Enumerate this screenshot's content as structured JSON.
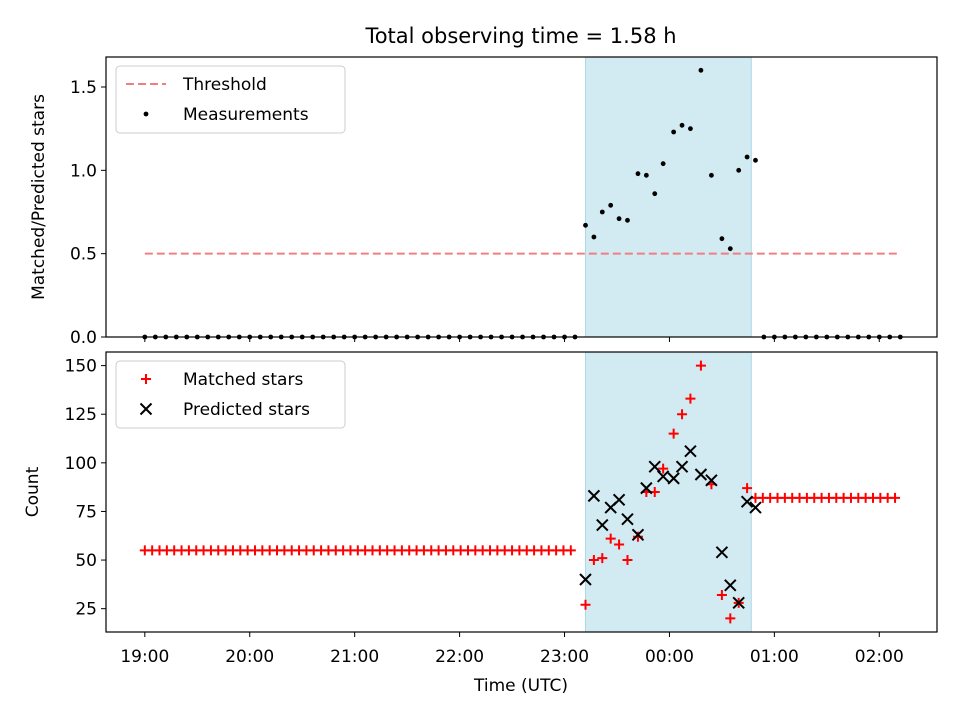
{
  "chart_data": {
    "title": "Total observing time = 1.58 h",
    "xlabel": "Time (UTC)",
    "x_tick_labels": [
      "19:00",
      "20:00",
      "21:00",
      "22:00",
      "23:00",
      "00:00",
      "01:00",
      "02:00"
    ],
    "x_tick_hours": [
      0,
      1,
      2,
      3,
      4,
      5,
      6,
      7
    ],
    "x_axis_start": "19:00",
    "xlim_hours": [
      -0.37,
      7.55
    ],
    "shaded_span_hours": [
      4.2,
      5.78
    ],
    "colors": {
      "threshold": "#f08080",
      "measurements": "#000000",
      "matched": "#ff0000",
      "predicted": "#000000",
      "span": "#add8e6"
    },
    "panels": [
      {
        "type": "scatter",
        "ylabel": "Matched/Predicted stars",
        "ylim": [
          0,
          1.68
        ],
        "y_ticks": [
          0.0,
          0.5,
          1.0,
          1.5
        ],
        "y_tick_labels": [
          "0.0",
          "0.5",
          "1.0",
          "1.5"
        ],
        "legend_position": "top-left",
        "threshold": {
          "name": "Threshold",
          "value": 0.5,
          "x_range_hours": [
            0,
            7.2
          ]
        },
        "measurements": {
          "name": "Measurements",
          "zero_before": {
            "start": 0,
            "end": 4.1,
            "step": 0.1
          },
          "zero_after": {
            "start": 5.9,
            "end": 7.2,
            "step": 0.1
          },
          "points": [
            [
              4.2,
              0.67
            ],
            [
              4.28,
              0.6
            ],
            [
              4.36,
              0.75
            ],
            [
              4.44,
              0.79
            ],
            [
              4.52,
              0.71
            ],
            [
              4.6,
              0.7
            ],
            [
              4.7,
              0.98
            ],
            [
              4.78,
              0.97
            ],
            [
              4.86,
              0.86
            ],
            [
              4.94,
              1.04
            ],
            [
              5.04,
              1.23
            ],
            [
              5.12,
              1.27
            ],
            [
              5.2,
              1.25
            ],
            [
              5.3,
              1.6
            ],
            [
              5.4,
              0.97
            ],
            [
              5.5,
              0.59
            ],
            [
              5.58,
              0.53
            ],
            [
              5.66,
              1.0
            ],
            [
              5.74,
              1.08
            ],
            [
              5.82,
              1.06
            ]
          ]
        }
      },
      {
        "type": "scatter",
        "ylabel": "Count",
        "ylim": [
          13,
          157
        ],
        "y_ticks": [
          25,
          50,
          75,
          100,
          125,
          150
        ],
        "y_tick_labels": [
          "25",
          "50",
          "75",
          "100",
          "125",
          "150"
        ],
        "legend_position": "top-left",
        "matched": {
          "name": "Matched stars",
          "flat_before": {
            "start": 0,
            "end": 4.1,
            "step": 0.07,
            "value": 55
          },
          "flat_after": {
            "start": 5.82,
            "end": 7.2,
            "step": 0.07,
            "value": 82
          },
          "points": [
            [
              4.2,
              27
            ],
            [
              4.28,
              50
            ],
            [
              4.36,
              51
            ],
            [
              4.44,
              61
            ],
            [
              4.52,
              58
            ],
            [
              4.6,
              50
            ],
            [
              4.7,
              62
            ],
            [
              4.78,
              85
            ],
            [
              4.86,
              85
            ],
            [
              4.94,
              97
            ],
            [
              5.04,
              115
            ],
            [
              5.12,
              125
            ],
            [
              5.2,
              133
            ],
            [
              5.3,
              150
            ],
            [
              5.4,
              89
            ],
            [
              5.5,
              32
            ],
            [
              5.58,
              20
            ],
            [
              5.66,
              28
            ],
            [
              5.74,
              87
            ]
          ]
        },
        "predicted": {
          "name": "Predicted stars",
          "points": [
            [
              4.2,
              40
            ],
            [
              4.28,
              83
            ],
            [
              4.36,
              68
            ],
            [
              4.44,
              77
            ],
            [
              4.52,
              81
            ],
            [
              4.6,
              71
            ],
            [
              4.7,
              63
            ],
            [
              4.78,
              87
            ],
            [
              4.86,
              98
            ],
            [
              4.94,
              93
            ],
            [
              5.04,
              92
            ],
            [
              5.12,
              98
            ],
            [
              5.2,
              106
            ],
            [
              5.3,
              94
            ],
            [
              5.4,
              91
            ],
            [
              5.5,
              54
            ],
            [
              5.58,
              37
            ],
            [
              5.66,
              28
            ],
            [
              5.74,
              80
            ],
            [
              5.82,
              77
            ]
          ]
        }
      }
    ]
  }
}
